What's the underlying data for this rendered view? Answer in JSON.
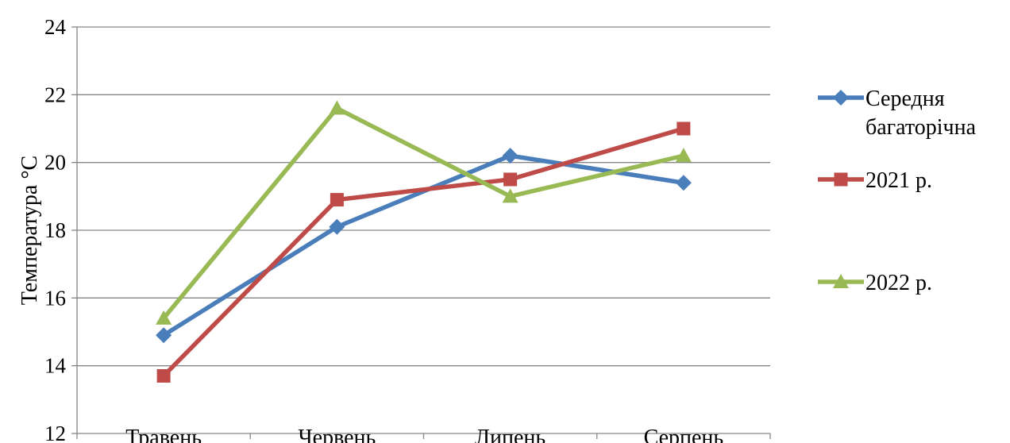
{
  "chart_data": {
    "type": "line",
    "title": "",
    "xlabel": "",
    "ylabel": "Температура °C",
    "categories": [
      "Травень",
      "Червень",
      "Липень",
      "Серпень"
    ],
    "ylim": [
      12,
      24
    ],
    "yticks": [
      "12",
      "14",
      "16",
      "18",
      "20",
      "22",
      "24"
    ],
    "grid": true,
    "legend_position": "right",
    "series": [
      {
        "name_lines": [
          "Середня",
          "багаторічна"
        ],
        "values": [
          14.9,
          18.1,
          20.2,
          19.4
        ],
        "color": "#4a7ebb",
        "marker": "diamond"
      },
      {
        "name_lines": [
          "2021 р."
        ],
        "values": [
          13.7,
          18.9,
          19.5,
          21.0
        ],
        "color": "#be4b48",
        "marker": "square"
      },
      {
        "name_lines": [
          "2022 р."
        ],
        "values": [
          15.4,
          21.6,
          19.0,
          20.2
        ],
        "color": "#98b954",
        "marker": "triangle"
      }
    ]
  }
}
